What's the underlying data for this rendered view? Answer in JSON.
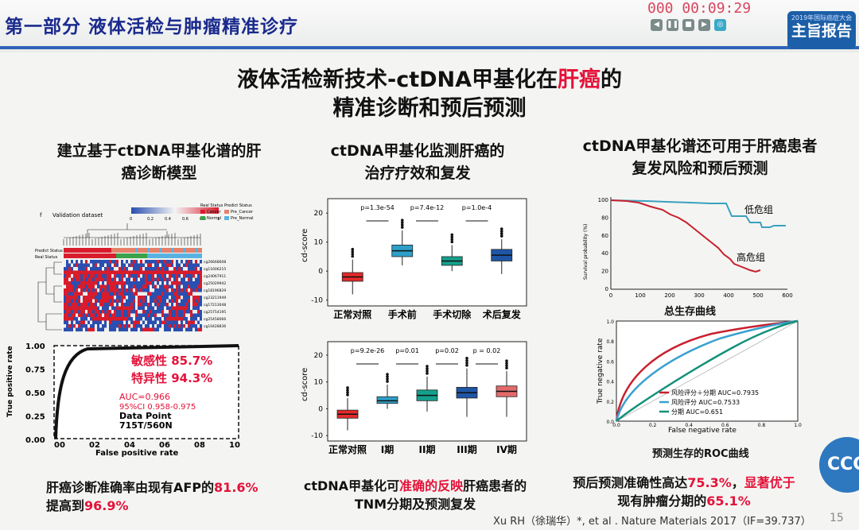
{
  "header": {
    "section_title": "第一部分 液体活检与肿瘤精准诊疗",
    "timer": "000 00:09:29",
    "badge_main": "主旨报告",
    "badge_top": "2019年国际癌症大会"
  },
  "slide": {
    "title_line1_prefix": "液体活检新技术-ctDNA甲基化在",
    "title_line1_highlight": "肝癌",
    "title_line1_suffix": "的",
    "title_line2": "精准诊断和预后预测",
    "page_number": "15",
    "citation": "Xu RH（徐瑞华）*,  et al . Nature Materials 2017（IF=39.737）"
  },
  "left": {
    "heading_line1": "建立基于ctDNA甲基化谱的肝",
    "heading_line2": "癌诊断模型",
    "heatmap": {
      "panel_label": "f",
      "dataset_label": "Validation dataset",
      "scale_ticks": [
        "0",
        "0.2",
        "0.4",
        "0.6",
        "0.8",
        "1"
      ],
      "real_status_title": "Real Status",
      "predict_status_title": "Predict Status",
      "legend": [
        "Cancer",
        "Normal",
        "Pre_Cancer",
        "Pre_Normal"
      ],
      "row_tracks": [
        "Predict Status",
        "Real Status"
      ],
      "markers": [
        "cg26668608",
        "cg11606215",
        "cg24067911",
        "cg25029942",
        "cg18196829",
        "cg23211949",
        "cg17213048",
        "cg25754195",
        "cg25458066",
        "cg10428836"
      ]
    },
    "roc": {
      "sensitivity": "敏感性 85.7%",
      "specificity": "特异性 94.3%",
      "auc": "AUC=0.966",
      "ci": "95%CI 0.958-0.975",
      "data_point": "Data Point",
      "data_point_value": "715T/560N",
      "xlabel": "False positive rate",
      "ylabel": "True positive rate",
      "yticks": [
        "1.00",
        "0.75",
        "0.50",
        "0.25",
        "0.00"
      ],
      "xticks": [
        "00",
        "02",
        "04",
        "06",
        "08",
        "10"
      ]
    },
    "caption_line1_prefix": "肝癌诊断准确率由现有AFP的",
    "caption_line1_highlight": "81.6%",
    "caption_line2_prefix": "提高到",
    "caption_line2_highlight": "96.9%"
  },
  "middle": {
    "heading_line1": "ctDNA甲基化监测肝癌的",
    "heading_line2": "治疗疗效和复发",
    "ylabel": "cd-score",
    "yticks": [
      "20",
      "10",
      "0",
      "-10"
    ],
    "box1": {
      "categories": [
        "正常对照",
        "手术前",
        "手术切除",
        "术后复发"
      ],
      "pvalues": [
        "p=1.3e-54",
        "p=7.4e-12",
        "p=1.0e-4"
      ],
      "colors": [
        "#e32a2a",
        "#2ea0c8",
        "#14a08c",
        "#1f55a5"
      ]
    },
    "box2": {
      "categories": [
        "正常对照",
        "I期",
        "II期",
        "III期",
        "IV期"
      ],
      "pvalues": [
        "p=9.2e-26",
        "p=0.01",
        "p=0.02",
        "p = 0.02"
      ],
      "colors": [
        "#e32a2a",
        "#2ea0c8",
        "#14a08c",
        "#1f55a5",
        "#e36a6a"
      ]
    },
    "caption_line1_prefix": "ctDNA甲基化可",
    "caption_line1_highlight": "准确的反映",
    "caption_line1_suffix": "肝癌患者的",
    "caption_line2": "TNM分期及预测复发"
  },
  "right": {
    "heading_line1": "ctDNA甲基化谱还可用于肝癌患者",
    "heading_line2": "复发风险和预后预测",
    "survival": {
      "ylabel": "Survival probability (%)",
      "yticks": [
        "100",
        "80",
        "60",
        "40",
        "20",
        "0"
      ],
      "xticks": [
        "0",
        "100",
        "200",
        "300",
        "400",
        "500",
        "600"
      ],
      "low_risk_label": "低危组",
      "high_risk_label": "高危组",
      "caption": "总生存曲线"
    },
    "roc": {
      "ylabel": "True negative rate",
      "xlabel": "False negative rate",
      "legend": [
        "风险评分＋分期 AUC=0.7935",
        "风险评分 AUC=0.7533",
        "分期 AUC=0.651"
      ],
      "yticks": [
        "1.0",
        "0.8",
        "0.6",
        "0.4",
        "0.2",
        "0.0"
      ],
      "xticks": [
        "0.0",
        "0.2",
        "0.4",
        "0.6",
        "0.8",
        "1.0"
      ],
      "caption": "预测生存的ROC曲线"
    },
    "caption_line1_prefix": "预后预测准确性高达",
    "caption_line1_highlight1": "75.3%",
    "caption_line1_middle": "，",
    "caption_line1_highlight2": "显著优于",
    "caption_line2_prefix": "现有肿瘤分期的",
    "caption_line2_highlight": "65.1%"
  },
  "footer": {
    "logo_text": "CCC"
  }
}
